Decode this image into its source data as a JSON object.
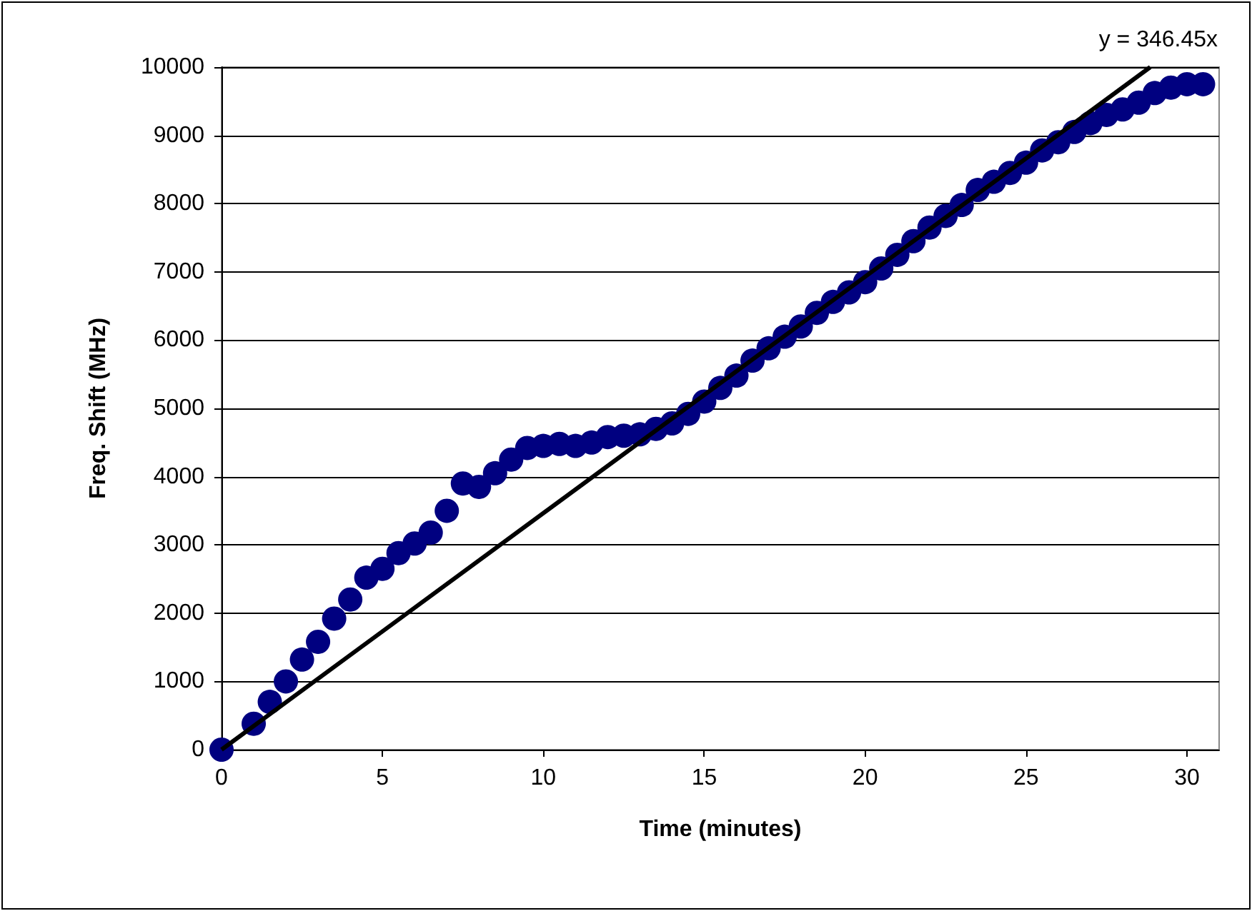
{
  "chart_data": {
    "type": "scatter",
    "xlabel": "Time (minutes)",
    "ylabel": "Freq. Shift (MHz)",
    "xlim": [
      0,
      31
    ],
    "xticks": [
      0,
      5,
      10,
      15,
      20,
      25,
      30
    ],
    "ylim": [
      0,
      10000
    ],
    "yticks": [
      0,
      1000,
      2000,
      3000,
      4000,
      5000,
      6000,
      7000,
      8000,
      9000,
      10000
    ],
    "grid": "y",
    "marker": "circle",
    "annotations": [
      "y = 346.45x"
    ],
    "series": [
      {
        "color": "#000080",
        "x": [
          0,
          1,
          1.5,
          2,
          2.5,
          3,
          3.5,
          4,
          4.5,
          5,
          5.5,
          6,
          6.5,
          7,
          7.5,
          8,
          8.5,
          9,
          9.5,
          10,
          10.5,
          11,
          11.5,
          12,
          12.5,
          13,
          13.5,
          14,
          14.5,
          15,
          15.5,
          16,
          16.5,
          17,
          17.5,
          18,
          18.5,
          19,
          19.5,
          20,
          20.5,
          21,
          21.5,
          22,
          22.5,
          23,
          23.5,
          24,
          24.5,
          25,
          25.5,
          26,
          26.5,
          27,
          27.5,
          28,
          28.5,
          29,
          29.5,
          30,
          30.5
        ],
        "values": [
          0,
          380,
          700,
          1000,
          1320,
          1580,
          1920,
          2200,
          2520,
          2650,
          2880,
          3020,
          3180,
          3500,
          3900,
          3850,
          4050,
          4250,
          4420,
          4450,
          4480,
          4450,
          4500,
          4580,
          4600,
          4620,
          4700,
          4780,
          4920,
          5100,
          5300,
          5480,
          5700,
          5880,
          6050,
          6200,
          6400,
          6560,
          6700,
          6850,
          7050,
          7250,
          7450,
          7650,
          7820,
          7980,
          8200,
          8320,
          8450,
          8600,
          8780,
          8900,
          9050,
          9180,
          9300,
          9380,
          9480,
          9620,
          9700,
          9750,
          9750
        ]
      },
      {
        "type": "line",
        "color": "#000000",
        "marker": "none",
        "x": [
          0,
          28.86
        ],
        "values": [
          0,
          10000
        ]
      }
    ]
  }
}
